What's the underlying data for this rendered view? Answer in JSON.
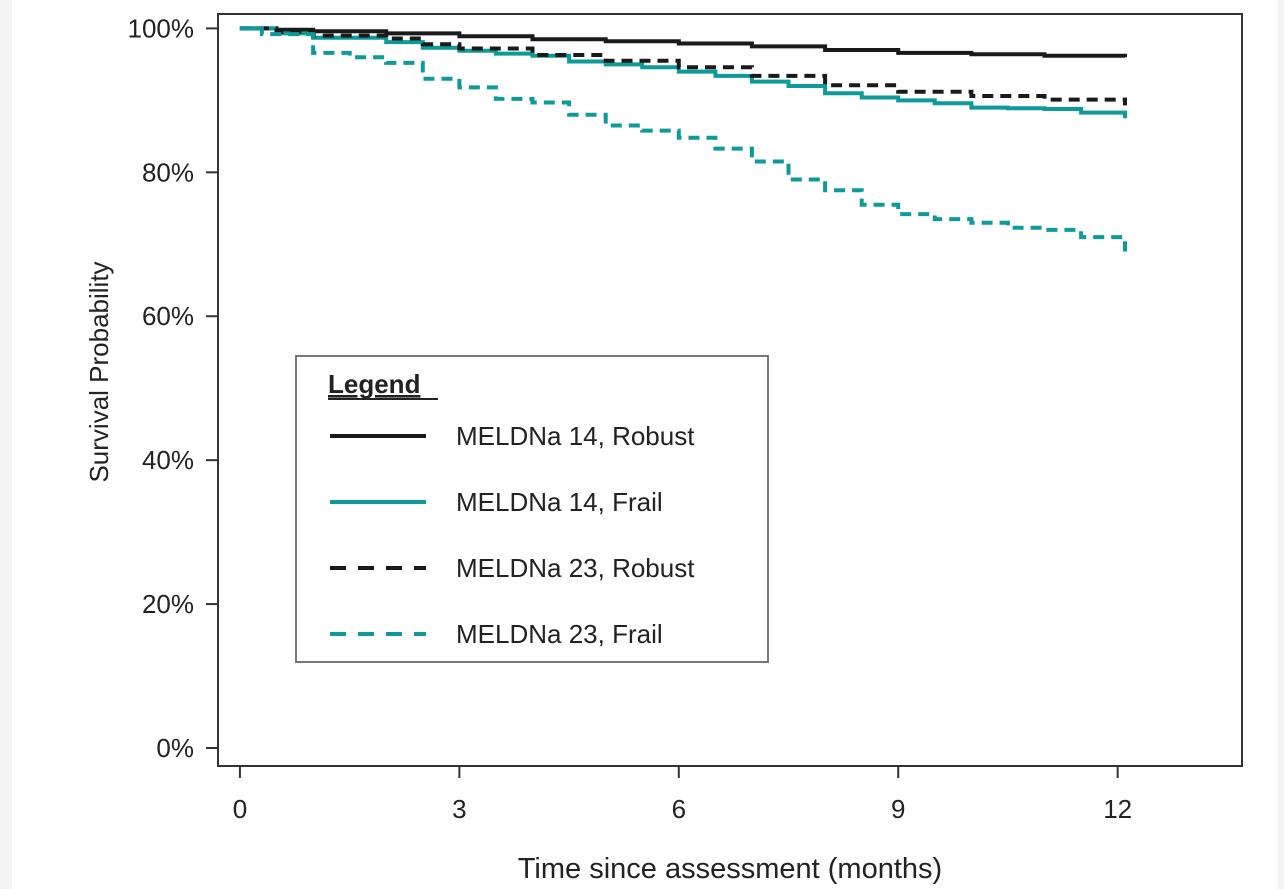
{
  "chart_data": {
    "type": "line",
    "xlabel": "Time since assessment (months)",
    "ylabel": "Survival Probability",
    "xlim": [
      -0.3,
      13.7
    ],
    "ylim": [
      -2.5,
      102
    ],
    "x_ticks": [
      0,
      3,
      6,
      9,
      12
    ],
    "x_tick_labels": [
      "0",
      "3",
      "6",
      "9",
      "12"
    ],
    "y_ticks": [
      0,
      20,
      40,
      60,
      80,
      100
    ],
    "y_tick_labels": [
      "0%",
      "20%",
      "40%",
      "60%",
      "80%",
      "100%"
    ],
    "grid": false,
    "legend": {
      "title": "Legend",
      "placement": "lower-left"
    },
    "series": [
      {
        "name": "MELDNa 14, Robust",
        "color": "#1a1a1a",
        "dashed": false,
        "points": [
          [
            0,
            100
          ],
          [
            0.5,
            99.8
          ],
          [
            1,
            99.6
          ],
          [
            2,
            99.3
          ],
          [
            3,
            98.9
          ],
          [
            4,
            98.5
          ],
          [
            5,
            98.2
          ],
          [
            6,
            97.9
          ],
          [
            7,
            97.5
          ],
          [
            8,
            97.0
          ],
          [
            9,
            96.6
          ],
          [
            10,
            96.4
          ],
          [
            11,
            96.2
          ],
          [
            12.1,
            96.0
          ]
        ]
      },
      {
        "name": "MELDNa 14, Frail",
        "color": "#0f9a9a",
        "dashed": false,
        "points": [
          [
            0,
            100
          ],
          [
            0.5,
            99.3
          ],
          [
            1,
            98.7
          ],
          [
            2,
            98.1
          ],
          [
            2.5,
            97.3
          ],
          [
            3,
            96.9
          ],
          [
            3.5,
            96.5
          ],
          [
            4,
            96.2
          ],
          [
            4.5,
            95.4
          ],
          [
            5,
            95.0
          ],
          [
            5.5,
            94.6
          ],
          [
            6,
            94.0
          ],
          [
            6.5,
            93.4
          ],
          [
            7,
            92.6
          ],
          [
            7.5,
            92.0
          ],
          [
            8,
            91.0
          ],
          [
            8.5,
            90.4
          ],
          [
            9,
            90.0
          ],
          [
            9.5,
            89.6
          ],
          [
            10,
            89.0
          ],
          [
            10.5,
            88.9
          ],
          [
            11,
            88.8
          ],
          [
            11.5,
            88.3
          ],
          [
            12.1,
            87.5
          ]
        ]
      },
      {
        "name": "MELDNa 23, Robust",
        "color": "#1a1a1a",
        "dashed": true,
        "points": [
          [
            0,
            100
          ],
          [
            0.5,
            99.5
          ],
          [
            1,
            99.0
          ],
          [
            2,
            98.6
          ],
          [
            2.5,
            97.8
          ],
          [
            3,
            97.2
          ],
          [
            4,
            96.3
          ],
          [
            5,
            95.5
          ],
          [
            6,
            94.6
          ],
          [
            7,
            93.4
          ],
          [
            8,
            92.1
          ],
          [
            9,
            91.2
          ],
          [
            10,
            90.6
          ],
          [
            11,
            90.1
          ],
          [
            12.1,
            89.3
          ]
        ]
      },
      {
        "name": "MELDNa 23, Frail",
        "color": "#0f9a9a",
        "dashed": true,
        "points": [
          [
            0,
            100
          ],
          [
            0.3,
            99.2
          ],
          [
            1,
            96.6
          ],
          [
            1.5,
            96.0
          ],
          [
            2,
            95.2
          ],
          [
            2.5,
            93.0
          ],
          [
            3,
            91.8
          ],
          [
            3.5,
            90.2
          ],
          [
            4,
            89.7
          ],
          [
            4.5,
            88.0
          ],
          [
            5,
            86.5
          ],
          [
            5.5,
            85.8
          ],
          [
            6,
            84.8
          ],
          [
            6.5,
            83.3
          ],
          [
            7,
            81.5
          ],
          [
            7.5,
            79.0
          ],
          [
            8,
            77.5
          ],
          [
            8.5,
            75.5
          ],
          [
            9,
            74.2
          ],
          [
            9.5,
            73.5
          ],
          [
            10,
            73.0
          ],
          [
            10.5,
            72.3
          ],
          [
            11,
            72.0
          ],
          [
            11.5,
            71.0
          ],
          [
            12.1,
            69.0
          ]
        ]
      }
    ]
  }
}
